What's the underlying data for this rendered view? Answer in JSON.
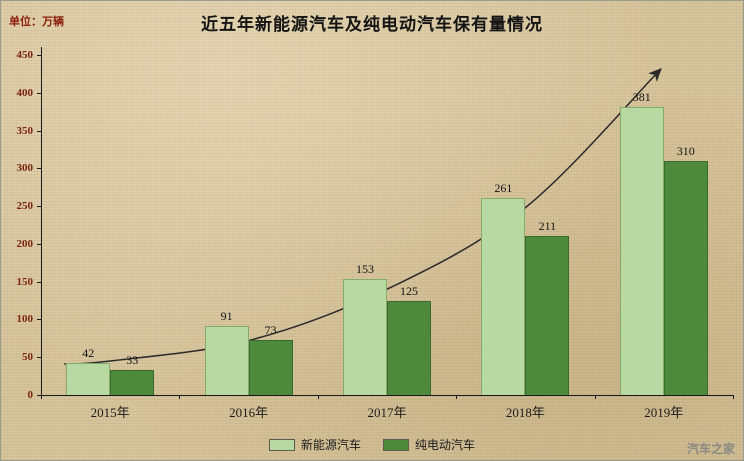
{
  "header": {
    "title": "近五年新能源汽车及纯电动汽车保有量情况",
    "unit_label": "单位：万辆"
  },
  "watermark": {
    "text": "汽车之家"
  },
  "chart_data": {
    "type": "bar",
    "title": "近五年新能源汽车及纯电动汽车保有量情况",
    "unit": "万辆",
    "categories": [
      "2015年",
      "2016年",
      "2017年",
      "2018年",
      "2019年"
    ],
    "series": [
      {
        "name": "新能源汽车",
        "color": "#b9d9a3",
        "border": "#85aa6b",
        "values": [
          42,
          91,
          153,
          261,
          381
        ]
      },
      {
        "name": "纯电动汽车",
        "color": "#4e8a3c",
        "border": "#3a6b2c",
        "values": [
          33,
          73,
          125,
          211,
          310
        ]
      }
    ],
    "ylim": [
      0,
      450
    ],
    "ytick_step": 50,
    "grid": false,
    "legend_position": "bottom",
    "trend_line": {
      "color": "#2a2a2a",
      "values": [
        45,
        72,
        140,
        248,
        430
      ]
    }
  }
}
